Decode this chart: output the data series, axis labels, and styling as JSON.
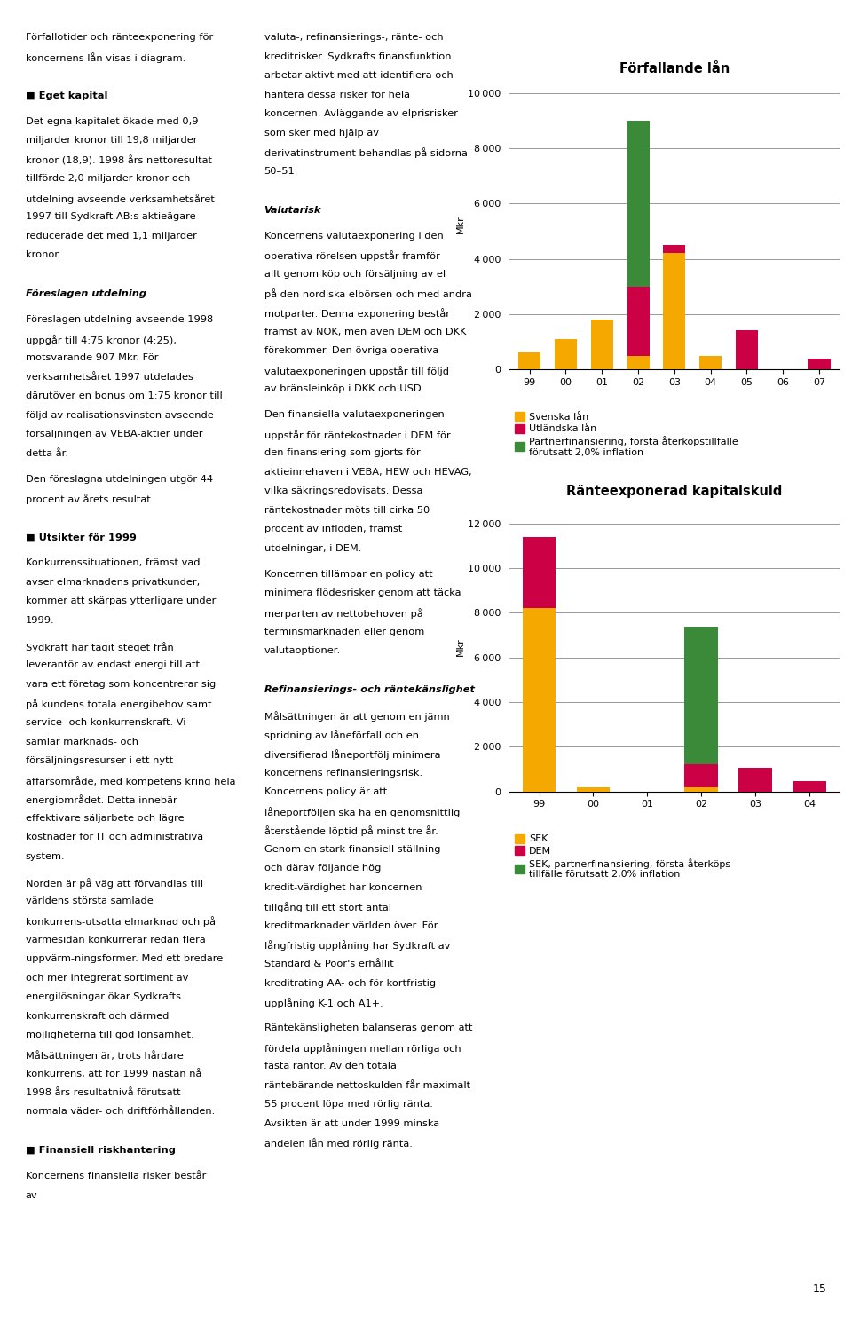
{
  "chart1": {
    "title": "Förfallande lån",
    "ylabel": "Mkr",
    "ylim": [
      0,
      10500
    ],
    "yticks": [
      0,
      2000,
      4000,
      6000,
      8000,
      10000
    ],
    "years": [
      "99",
      "00",
      "01",
      "02",
      "03",
      "04",
      "05",
      "06",
      "07"
    ],
    "svenska": [
      600,
      1100,
      1800,
      500,
      4200,
      500,
      0,
      0,
      0
    ],
    "utlandska": [
      0,
      0,
      0,
      2500,
      300,
      0,
      1400,
      0,
      400
    ],
    "partner": [
      0,
      0,
      0,
      6000,
      0,
      0,
      0,
      0,
      0
    ],
    "colors": [
      "#f5a800",
      "#cc0044",
      "#3a8a3a"
    ],
    "legend": [
      "Svenska lån",
      "Utländska lån",
      "Partnerfinansiering, första återköpstillfälle\nförutsatt 2,0% inflation"
    ]
  },
  "chart2": {
    "title": "Ränteexponerad kapitalskuld",
    "ylabel": "Mkr",
    "ylim": [
      0,
      13000
    ],
    "yticks": [
      0,
      2000,
      4000,
      6000,
      8000,
      10000,
      12000
    ],
    "years": [
      "99",
      "00",
      "01",
      "02",
      "03",
      "04"
    ],
    "sek": [
      8200,
      200,
      0,
      200,
      0,
      0
    ],
    "dem": [
      3200,
      0,
      0,
      1000,
      1050,
      450
    ],
    "sek_partner": [
      0,
      0,
      0,
      6200,
      0,
      0
    ],
    "colors": [
      "#f5a800",
      "#cc0044",
      "#3a8a3a"
    ],
    "legend": [
      "SEK",
      "DEM",
      "SEK, partnerfinansiering, första återköps-\ntillfälle förutsatt 2,0% inflation"
    ]
  },
  "background_color": "#ffffff",
  "title_fontsize": 10.5,
  "label_fontsize": 8,
  "tick_fontsize": 8,
  "legend_fontsize": 8,
  "body_fontsize": 8.2,
  "col1_text": [
    {
      "type": "para",
      "text": "Förfallotider och ränteexponering för koncernens lån visas i diagram."
    },
    {
      "type": "gap"
    },
    {
      "type": "heading",
      "text": "■ Eget kapital"
    },
    {
      "type": "para",
      "text": "Det egna kapitalet ökade med 0,9 miljarder kronor till 19,8 miljarder kronor (18,9). 1998 års nettoresultat tillförde 2,0 miljarder kronor och utdelning avseende verksamhetsåret 1997 till Sydkraft AB:s aktieägare reducerade det med 1,1 miljarder kronor."
    },
    {
      "type": "gap"
    },
    {
      "type": "heading_italic",
      "text": "Föreslagen utdelning"
    },
    {
      "type": "para",
      "text": "Föreslagen utdelning avseende 1998 uppgår till 4:75 kronor (4:25), motsvarande 907 Mkr. För verksamhetsåret 1997 utdelades därutöver en bonus om 1:75 kronor till följd av realisationsvinsten avseende försäljningen av VEBA-aktier under detta år."
    },
    {
      "type": "para",
      "text": "Den föreslagna utdelningen utgör 44 procent av årets resultat."
    },
    {
      "type": "gap"
    },
    {
      "type": "heading",
      "text": "■ Utsikter för 1999"
    },
    {
      "type": "para",
      "text": "Konkurrenssituationen, främst vad avser elmarknadens privatkunder, kommer att skärpas ytterligare under 1999."
    },
    {
      "type": "para",
      "text": "Sydkraft har tagit steget från leverantör av endast energi till att vara ett företag som koncentrerar sig på kundens totala energibehov samt service- och konkurrenskraft. Vi samlar marknads- och försäljningsresurser i ett nytt affärsområde, med kompetens kring hela energiområdet. Detta innebär effektivare säljarbete och lägre kostnader för IT och administrativa system."
    },
    {
      "type": "para",
      "text": "Norden är på väg att förvandlas till världens största samlade konkurrens-utsatta elmarknad och på värmesidan konkurrerar redan flera uppvärm-ningsformer. Med ett bredare och mer integrerat sortiment av energilösningar ökar Sydkrafts konkurrenskraft och därmed möjligheterna till god lönsamhet. Målsättningen är, trots hårdare konkurrens, att för 1999 nästan nå 1998 års resultatnivå förutsatt normala väder- och driftförhållanden."
    },
    {
      "type": "gap"
    },
    {
      "type": "heading",
      "text": "■ Finansiell riskhantering"
    },
    {
      "type": "para",
      "text": "Koncernens finansiella risker består av"
    }
  ],
  "col2_text": [
    {
      "type": "para",
      "text": "valuta-, refinansierings-, ränte- och kreditrisker. Sydkrafts finansfunktion arbetar aktivt med att identifiera och hantera dessa risker för hela koncernen. Avläggande av elprisrisker som sker med hjälp av derivatinstrument behandlas på sidorna 50–51."
    },
    {
      "type": "gap"
    },
    {
      "type": "heading_italic",
      "text": "Valutarisk"
    },
    {
      "type": "para",
      "text": "Koncernens valutaexponering i den operativa rörelsen uppstår framför allt genom köp och försäljning av el på den nordiska elbörsen och med andra motparter. Denna exponering består främst av NOK, men även DEM och DKK förekommer. Den övriga operativa valutaexponeringen uppstår till följd av bränsleinköp i DKK och USD."
    },
    {
      "type": "para",
      "text": "Den finansiella valutaexponeringen uppstår för räntekostnader i DEM för den finansiering som gjorts för aktieinnehaven i VEBA, HEW och HEVAG, vilka säkringsredovisats. Dessa räntekostnader möts till cirka 50 procent av inflöden, främst utdelningar, i DEM."
    },
    {
      "type": "para",
      "text": "Koncernen tillämpar en policy att minimera flödesrisker genom att täcka merparten av nettobehoven på terminsmarknaden eller genom valutaoptioner."
    },
    {
      "type": "gap"
    },
    {
      "type": "heading_italic",
      "text": "Refinansierings- och räntekänslighet"
    },
    {
      "type": "para",
      "text": "Målsättningen är att genom en jämn spridning av låneförfall och en diversifierad låneportfölj minimera koncernens refinansieringsrisk. Koncernens policy är att låneportföljen ska ha en genomsnittlig återstående löptid på minst tre år. Genom en stark finansiell ställning och därav följande hög kredit-värdighet har koncernen tillgång till ett stort antal kreditmarknader världen över. För långfristig upplåning har Sydkraft av Standard & Poor's erhållit kreditrating AA- och för kortfristig upplåning K-1 och A1+."
    },
    {
      "type": "para",
      "text": "Räntekänsligheten balanseras genom att fördela upplåningen mellan rörliga och fasta räntor. Av den totala räntebärande nettoskulden får maximalt 55 procent löpa med rörlig ränta. Avsikten är att under 1999 minska andelen lån med rörlig ränta."
    }
  ],
  "page_number": "15"
}
